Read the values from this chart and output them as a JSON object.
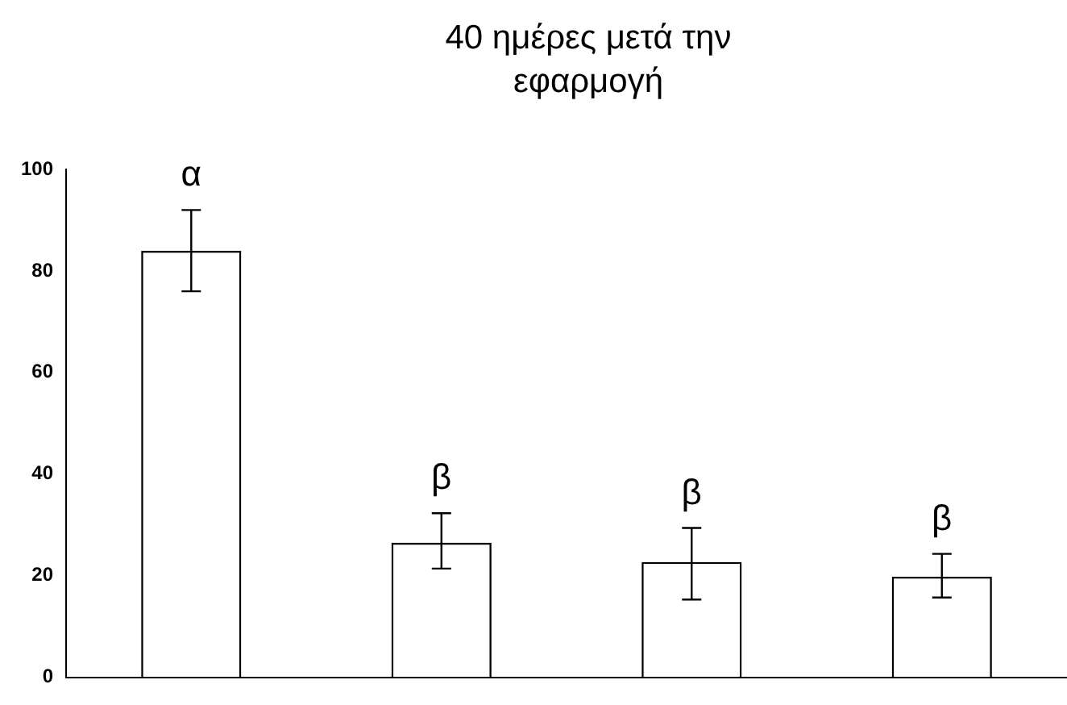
{
  "chart_data": {
    "type": "bar",
    "title": "40 ημέρες μετά την εφαρμογή",
    "categories": [
      null,
      null,
      null,
      null
    ],
    "values": [
      84,
      26.5,
      22.7,
      19.8
    ],
    "errors": [
      [
        76,
        92
      ],
      [
        21.4,
        32.3
      ],
      [
        15.3,
        29.4
      ],
      [
        15.7,
        24.3
      ]
    ],
    "color": "#000000",
    "annotations": [
      "α",
      "β",
      "β",
      "β"
    ],
    "ylim": [
      0,
      100
    ],
    "yticks": [
      0,
      20,
      40,
      60,
      80,
      100
    ],
    "grid": false,
    "legend": false
  }
}
